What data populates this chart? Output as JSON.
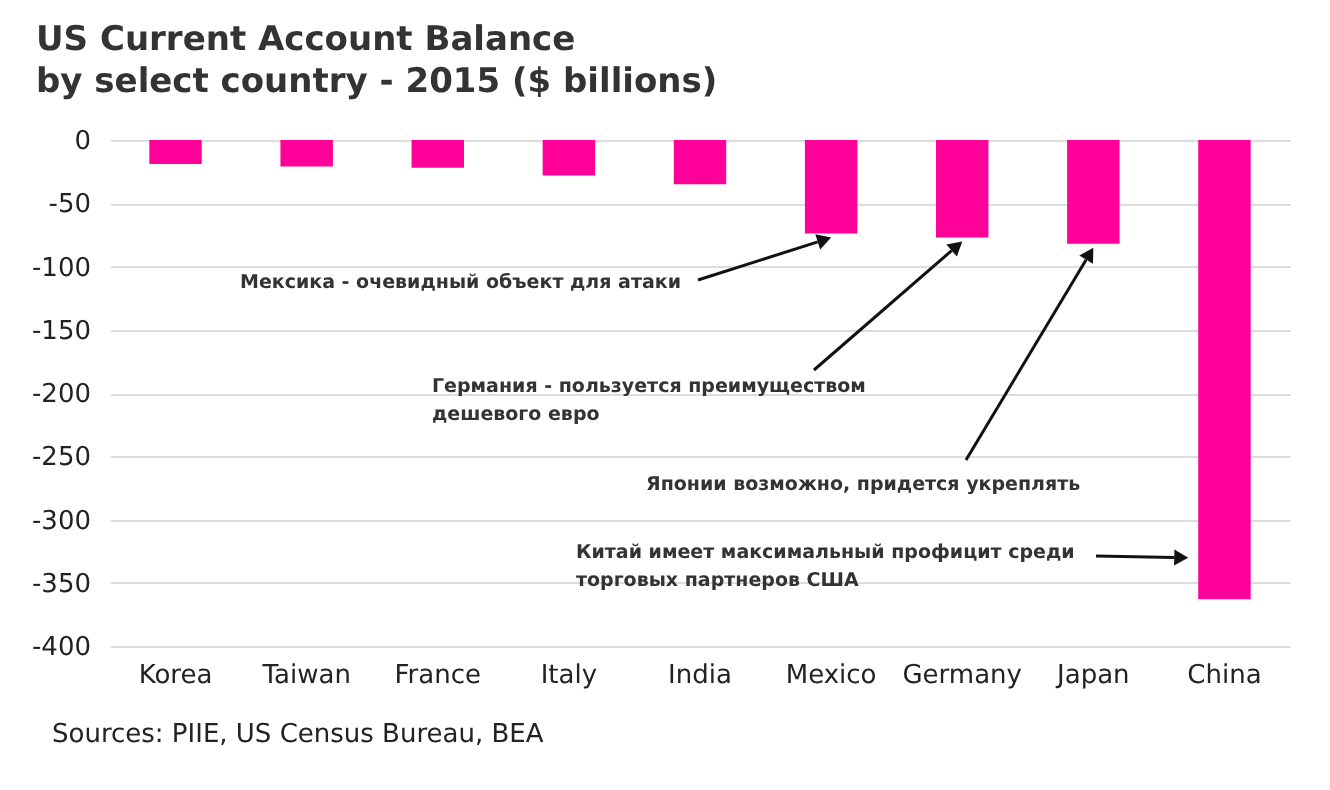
{
  "chart_data": {
    "type": "bar",
    "title": "US Current Account Balance",
    "subtitle": "by select country - 2015 ($ billions)",
    "categories": [
      "Korea",
      "Taiwan",
      "France",
      "Italy",
      "India",
      "Mexico",
      "Germany",
      "Japan",
      "China"
    ],
    "values": [
      -19,
      -21,
      -22,
      -28,
      -35,
      -74,
      -77,
      -82,
      -363
    ],
    "color": "#ff0099",
    "ylim": [
      -400,
      0
    ],
    "yticks": [
      -400,
      -350,
      -300,
      -250,
      -200,
      -150,
      -100,
      -50,
      0
    ],
    "grid": "y",
    "annotations": [
      {
        "text": "Мексика - очевидный объект для атаки",
        "x": "Mexico",
        "y": -74
      },
      {
        "text": "Германия - пользуется преимуществом\nдешевого евро",
        "x": "Germany",
        "y": -77
      },
      {
        "text": "Японии возможно, придется укреплять",
        "x": "Japan",
        "y": -82
      },
      "Китай имеет максимальный профицит среди\nторговых партнеров США",
      "Sources: PIIE, US Census Bureau, BEA"
    ]
  }
}
